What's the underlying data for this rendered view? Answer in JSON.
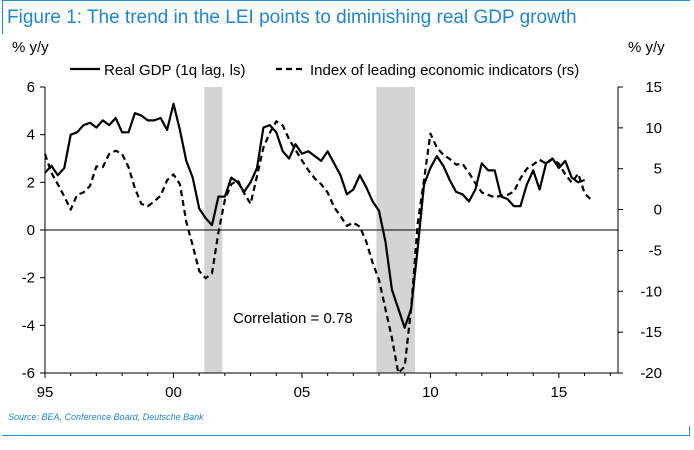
{
  "figure": {
    "title": "Figure 1: The trend in the LEI points to diminishing real GDP growth",
    "source": "Source: BEA, Conference Board, Deutsche Bank",
    "title_color": "#1f86cf"
  },
  "chart_data": {
    "type": "line",
    "left_axis": {
      "label": "% y/y",
      "range": [
        -6,
        6
      ],
      "ticks": [
        -6,
        -4,
        -2,
        0,
        2,
        4,
        6
      ]
    },
    "right_axis": {
      "label": "% y/y",
      "range": [
        -20,
        15
      ],
      "ticks": [
        -20,
        -15,
        -10,
        -5,
        0,
        5,
        10,
        15
      ]
    },
    "x_axis": {
      "range": [
        1995,
        2017.3
      ],
      "ticks": [
        1995,
        2000,
        2005,
        2010,
        2015
      ],
      "tick_labels": [
        "95",
        "00",
        "05",
        "10",
        "15"
      ]
    },
    "legend": {
      "placement": "top",
      "entries": [
        "Real GDP (1q lag, ls)",
        "Index of leading economic indicators (rs)"
      ]
    },
    "recessions": [
      [
        2001.2,
        2001.9
      ],
      [
        2007.9,
        2009.4
      ]
    ],
    "annotation": "Correlation = 0.78",
    "series": [
      {
        "name": "Real GDP (1q lag, ls)",
        "axis": "left",
        "style": "solid",
        "color": "#000000",
        "x": [
          1995.0,
          1995.25,
          1995.5,
          1995.75,
          1996.0,
          1996.25,
          1996.5,
          1996.75,
          1997.0,
          1997.25,
          1997.5,
          1997.75,
          1998.0,
          1998.25,
          1998.5,
          1998.75,
          1999.0,
          1999.25,
          1999.5,
          1999.75,
          2000.0,
          2000.25,
          2000.5,
          2000.75,
          2001.0,
          2001.25,
          2001.5,
          2001.75,
          2002.0,
          2002.25,
          2002.5,
          2002.75,
          2003.0,
          2003.25,
          2003.5,
          2003.75,
          2004.0,
          2004.25,
          2004.5,
          2004.75,
          2005.0,
          2005.25,
          2005.5,
          2005.75,
          2006.0,
          2006.25,
          2006.5,
          2006.75,
          2007.0,
          2007.25,
          2007.5,
          2007.75,
          2008.0,
          2008.25,
          2008.5,
          2008.75,
          2009.0,
          2009.25,
          2009.5,
          2009.75,
          2010.0,
          2010.25,
          2010.5,
          2010.75,
          2011.0,
          2011.25,
          2011.5,
          2011.75,
          2012.0,
          2012.25,
          2012.5,
          2012.75,
          2013.0,
          2013.25,
          2013.5,
          2013.75,
          2014.0,
          2014.25,
          2014.5,
          2014.75,
          2015.0,
          2015.25,
          2015.5,
          2015.75,
          2016.0
        ],
        "values": [
          2.4,
          2.7,
          2.3,
          2.6,
          4.0,
          4.1,
          4.4,
          4.5,
          4.3,
          4.6,
          4.4,
          4.7,
          4.1,
          4.1,
          4.9,
          4.8,
          4.6,
          4.6,
          4.7,
          4.2,
          5.3,
          4.2,
          2.9,
          2.2,
          0.9,
          0.5,
          0.2,
          1.4,
          1.4,
          2.2,
          2.0,
          1.6,
          2.0,
          2.6,
          4.3,
          4.4,
          4.1,
          3.3,
          3.0,
          3.6,
          3.2,
          3.3,
          3.1,
          2.9,
          3.3,
          2.8,
          2.3,
          1.5,
          1.7,
          2.3,
          1.8,
          1.2,
          0.8,
          -0.5,
          -2.5,
          -3.3,
          -4.1,
          -3.3,
          -0.8,
          1.9,
          2.6,
          3.1,
          2.7,
          2.1,
          1.6,
          1.5,
          1.2,
          1.7,
          2.8,
          2.5,
          2.5,
          1.4,
          1.3,
          1.0,
          1.0,
          1.9,
          2.5,
          1.7,
          2.8,
          3.0,
          2.6,
          2.9,
          2.2,
          2.0,
          2.1
        ]
      },
      {
        "name": "Index of leading economic indicators (rs)",
        "axis": "right",
        "style": "dashed",
        "color": "#000000",
        "x": [
          1995.0,
          1995.25,
          1995.5,
          1995.75,
          1996.0,
          1996.25,
          1996.5,
          1996.75,
          1997.0,
          1997.25,
          1997.5,
          1997.75,
          1998.0,
          1998.25,
          1998.5,
          1998.75,
          1999.0,
          1999.25,
          1999.5,
          1999.75,
          2000.0,
          2000.25,
          2000.5,
          2000.75,
          2001.0,
          2001.25,
          2001.5,
          2001.75,
          2002.0,
          2002.25,
          2002.5,
          2002.75,
          2003.0,
          2003.25,
          2003.5,
          2003.75,
          2004.0,
          2004.25,
          2004.5,
          2004.75,
          2005.0,
          2005.25,
          2005.5,
          2005.75,
          2006.0,
          2006.25,
          2006.5,
          2006.75,
          2007.0,
          2007.25,
          2007.5,
          2007.75,
          2008.0,
          2008.25,
          2008.5,
          2008.75,
          2009.0,
          2009.25,
          2009.5,
          2009.75,
          2010.0,
          2010.25,
          2010.5,
          2010.75,
          2011.0,
          2011.25,
          2011.5,
          2011.75,
          2012.0,
          2012.25,
          2012.5,
          2012.75,
          2013.0,
          2013.25,
          2013.5,
          2013.75,
          2014.0,
          2014.25,
          2014.5,
          2014.75,
          2015.0,
          2015.25,
          2015.5,
          2015.75,
          2016.0,
          2016.25
        ],
        "values": [
          6.8,
          4.5,
          3.1,
          1.6,
          0.0,
          1.8,
          2.1,
          2.9,
          5.3,
          5.2,
          6.8,
          7.2,
          6.8,
          5.2,
          2.6,
          0.7,
          0.4,
          1.0,
          1.7,
          3.6,
          4.3,
          3.1,
          -1.5,
          -4.4,
          -7.5,
          -8.4,
          -7.8,
          -2.8,
          1.2,
          3.1,
          3.6,
          2.0,
          0.7,
          4.1,
          7.6,
          9.4,
          10.8,
          10.3,
          8.6,
          7.3,
          6.0,
          4.8,
          3.8,
          3.1,
          2.1,
          0.3,
          -0.8,
          -2.0,
          -1.6,
          -2.1,
          -3.9,
          -6.5,
          -8.6,
          -12.2,
          -15.7,
          -20.0,
          -19.2,
          -12.0,
          -1.8,
          3.6,
          9.3,
          7.6,
          6.7,
          6.2,
          5.5,
          5.6,
          4.5,
          3.2,
          2.1,
          1.8,
          1.5,
          1.7,
          1.8,
          2.2,
          3.8,
          5.0,
          5.5,
          6.1,
          5.6,
          6.2,
          5.6,
          4.3,
          3.3,
          4.4,
          2.0,
          1.2
        ]
      }
    ]
  }
}
